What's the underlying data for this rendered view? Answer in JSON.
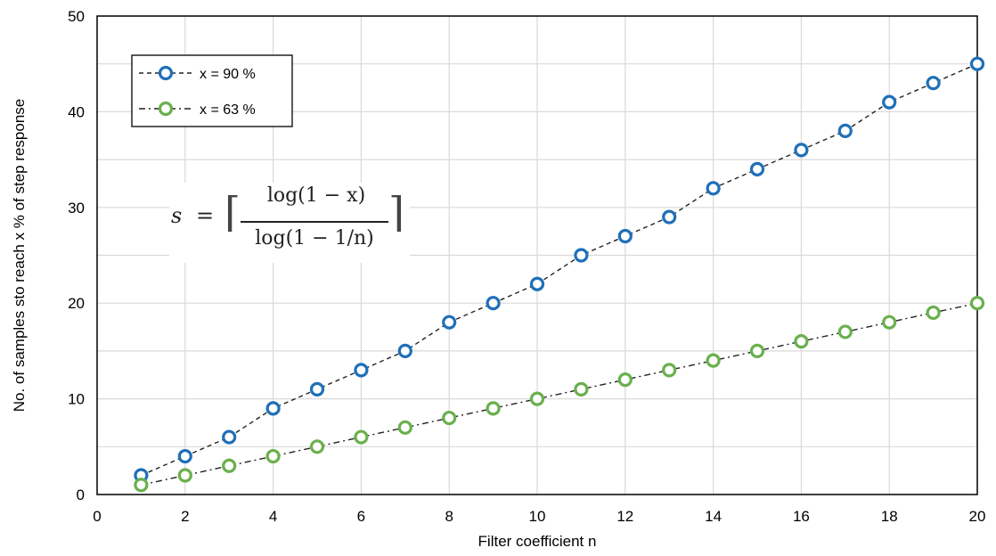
{
  "chart_data": {
    "type": "line",
    "xlabel": "Filter coefficient n",
    "ylabel": "No. of samples sto reach x % of step response",
    "xlim": [
      0,
      20
    ],
    "ylim": [
      0,
      50
    ],
    "xticks": [
      "0",
      "2",
      "4",
      "6",
      "8",
      "10",
      "12",
      "14",
      "16",
      "18",
      "20"
    ],
    "yticks": [
      "0",
      "10",
      "20",
      "30",
      "40",
      "50"
    ],
    "grid": true,
    "legend_position": "top-left",
    "x": [
      1,
      2,
      3,
      4,
      5,
      6,
      7,
      8,
      9,
      10,
      11,
      12,
      13,
      14,
      15,
      16,
      17,
      18,
      19,
      20
    ],
    "series": [
      {
        "name": "x = 90 %",
        "color": "#1f6fb8",
        "line_style": "dashed",
        "values": [
          2,
          4,
          6,
          9,
          11,
          13,
          15,
          18,
          20,
          22,
          25,
          27,
          29,
          32,
          34,
          36,
          38,
          41,
          43,
          45
        ]
      },
      {
        "name": "x = 63 %",
        "color": "#6ab04c",
        "line_style": "dash-dot",
        "values": [
          1,
          2,
          3,
          4,
          5,
          6,
          7,
          8,
          9,
          10,
          11,
          12,
          13,
          14,
          15,
          16,
          17,
          18,
          19,
          20
        ]
      }
    ],
    "annotation": {
      "lhs": "s",
      "eq": "=",
      "ceil_left": "⌈",
      "numerator": "log(1 − x)",
      "denominator": "log(1 − 1/n)",
      "ceil_right": "⌉"
    }
  }
}
